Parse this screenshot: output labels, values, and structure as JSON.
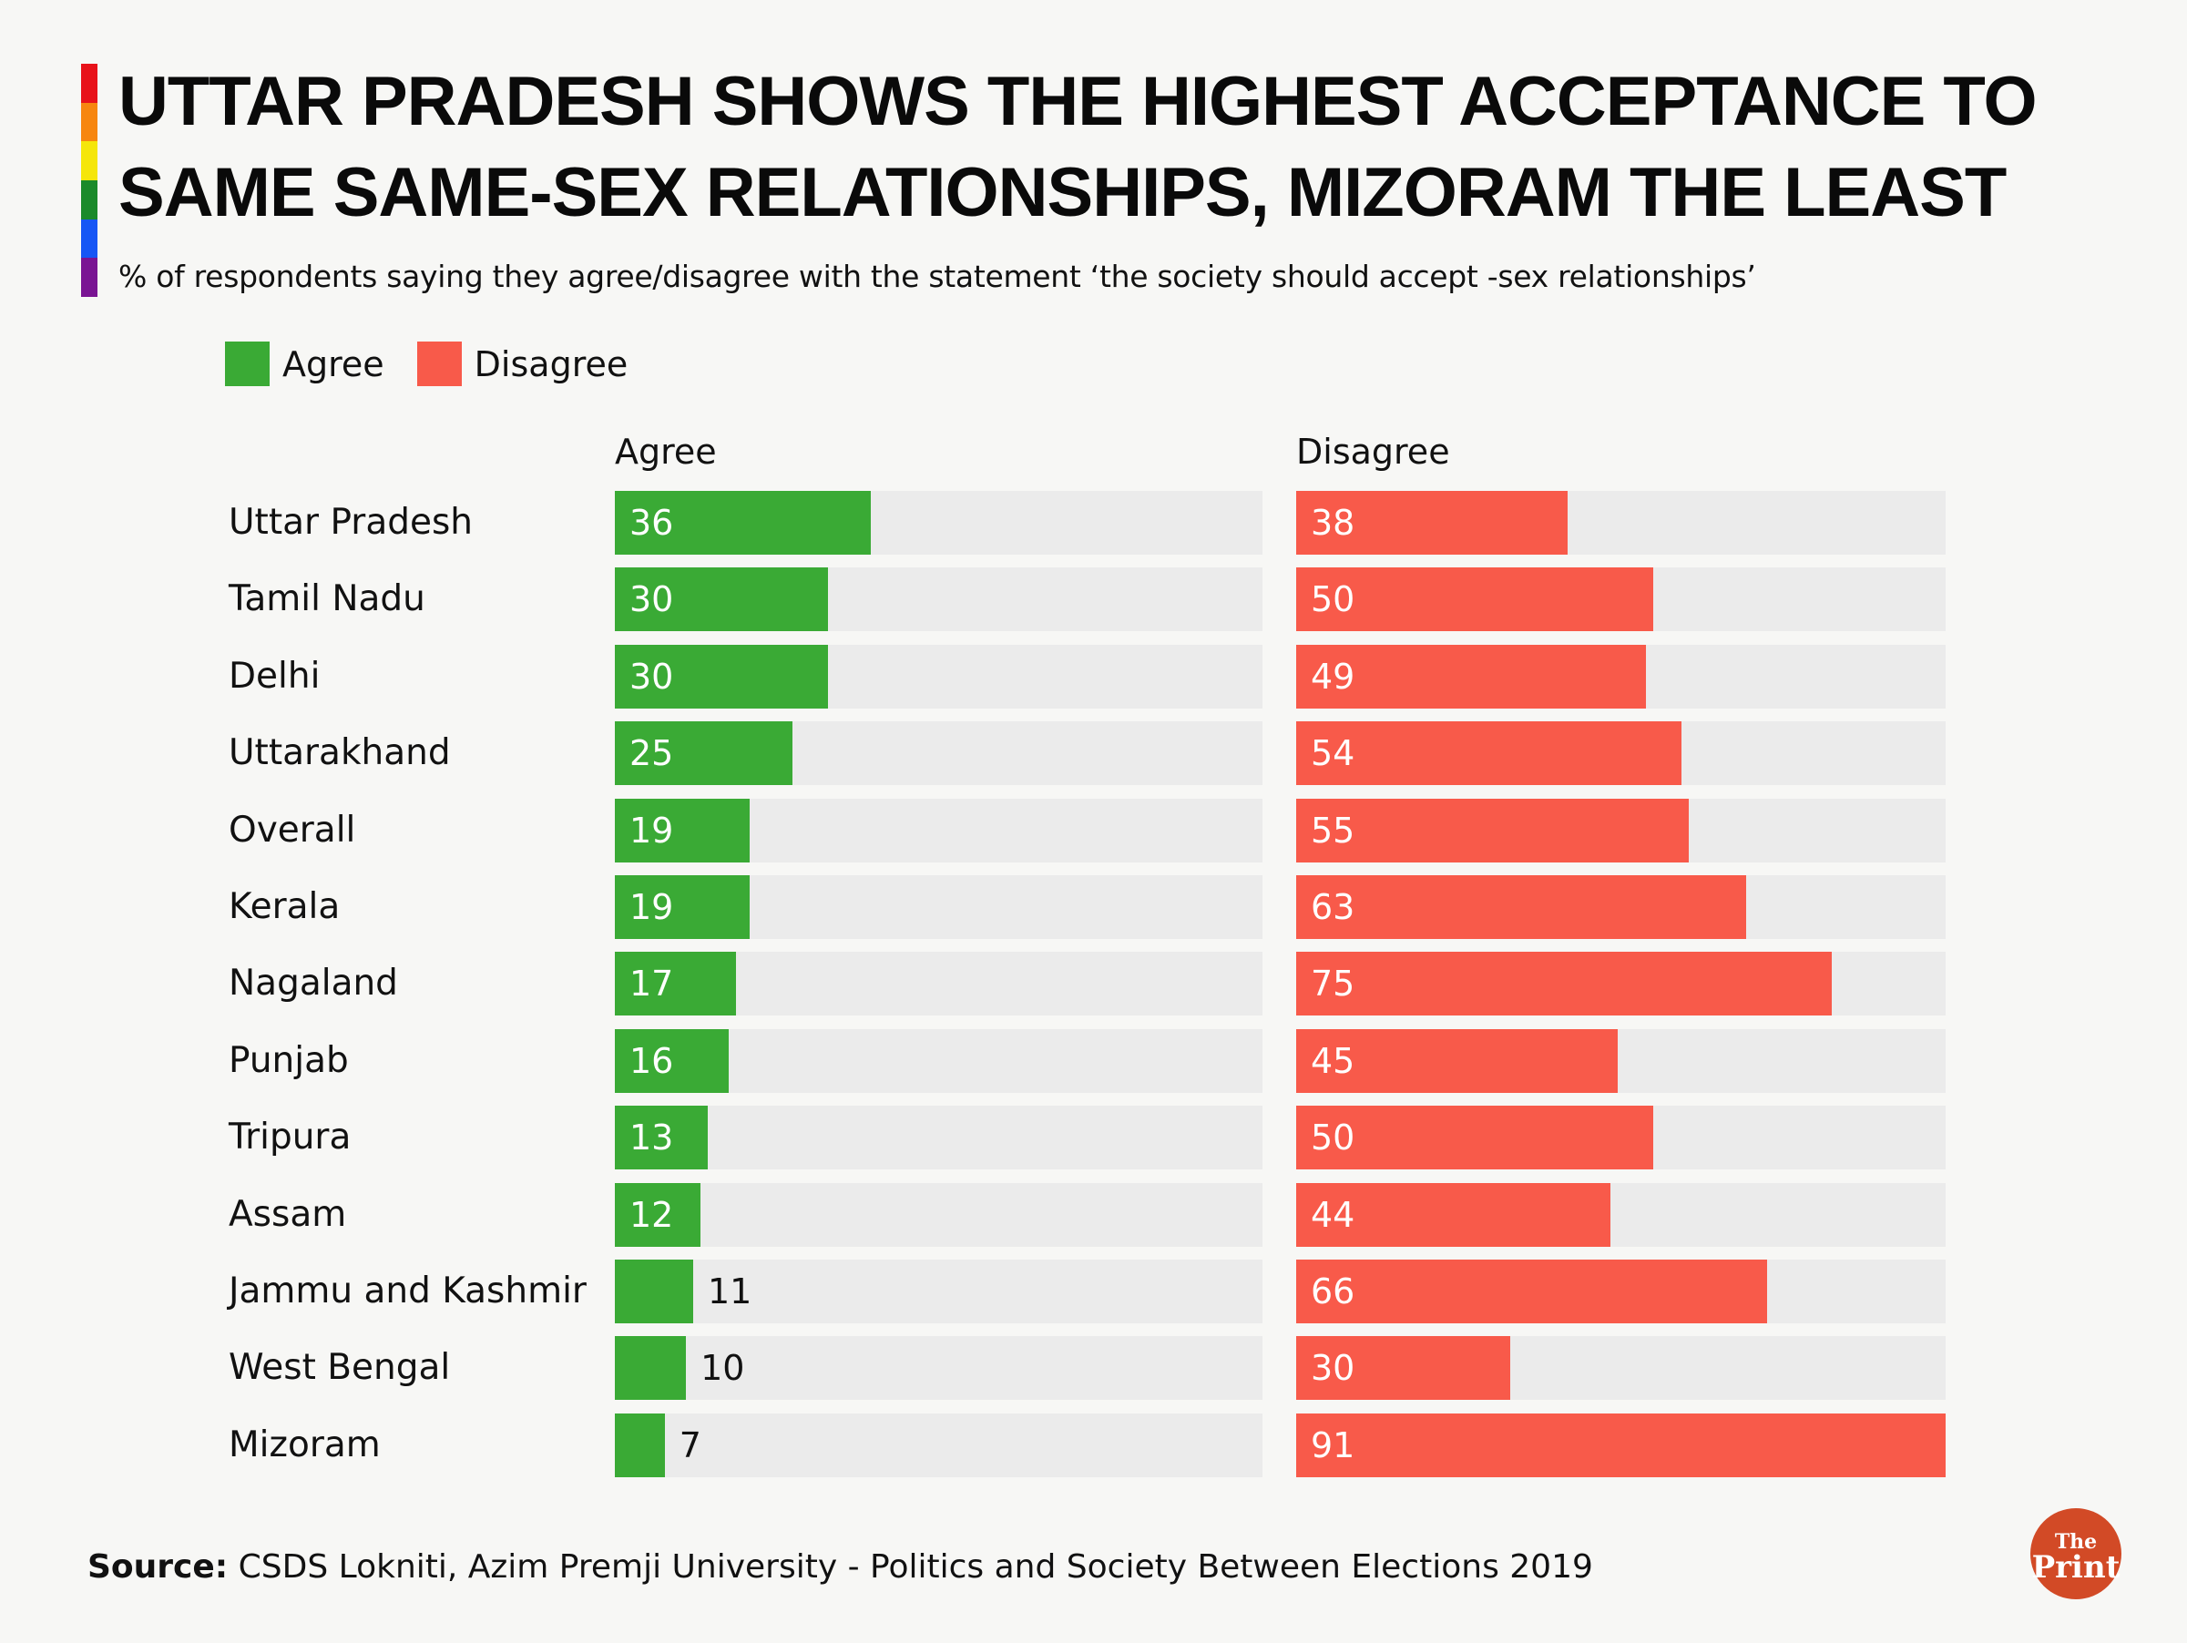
{
  "title": "UTTAR PRADESH SHOWS THE HIGHEST ACCEPTANCE TO SAME SAME-SEX RELATIONSHIPS, MIZORAM THE LEAST",
  "subtitle": "% of respondents saying they agree/disagree with the statement ‘the society should accept -sex relationships’",
  "rainbow_colors": [
    "#e8121a",
    "#f7860f",
    "#f5e60a",
    "#1a8a2a",
    "#1656f5",
    "#7a1493"
  ],
  "source": {
    "label": "Source:",
    "text": " CSDS Lokniti, Azim Premji University - Politics and Society Between Elections 2019"
  },
  "logo": {
    "line1": "The",
    "line2": "Print",
    "color": "#d24a26"
  },
  "chart_data": {
    "type": "bar",
    "orientation": "horizontal",
    "title": "UTTAR PRADESH SHOWS THE HIGHEST ACCEPTANCE TO SAME SAME-SEX RELATIONSHIPS, MIZORAM THE LEAST",
    "legend": {
      "position": "top-left",
      "entries": [
        "Agree",
        "Disagree"
      ]
    },
    "categories": [
      "Uttar Pradesh",
      "Tamil Nadu",
      "Delhi",
      "Uttarakhand",
      "Overall",
      "Kerala",
      "Nagaland",
      "Punjab",
      "Tripura",
      "Assam",
      "Jammu and Kashmir",
      "West Bengal",
      "Mizoram"
    ],
    "series": [
      {
        "name": "Agree",
        "color": "#3aaa35",
        "values": [
          36,
          30,
          30,
          25,
          19,
          19,
          17,
          16,
          13,
          12,
          11,
          10,
          7
        ]
      },
      {
        "name": "Disagree",
        "color": "#f85a4a",
        "values": [
          38,
          50,
          49,
          54,
          55,
          63,
          75,
          45,
          50,
          44,
          66,
          30,
          91
        ]
      }
    ],
    "xlim": [
      0,
      91
    ],
    "grid": false
  }
}
